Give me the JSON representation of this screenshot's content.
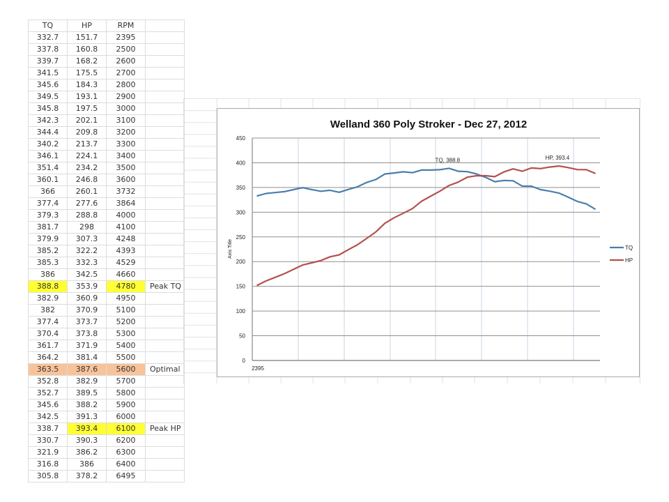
{
  "table": {
    "headers": [
      "TQ",
      "HP",
      "RPM",
      ""
    ],
    "rows": [
      {
        "tq": "332.7",
        "hp": "151.7",
        "rpm": "2395",
        "note": ""
      },
      {
        "tq": "337.8",
        "hp": "160.8",
        "rpm": "2500",
        "note": ""
      },
      {
        "tq": "339.7",
        "hp": "168.2",
        "rpm": "2600",
        "note": ""
      },
      {
        "tq": "341.5",
        "hp": "175.5",
        "rpm": "2700",
        "note": ""
      },
      {
        "tq": "345.6",
        "hp": "184.3",
        "rpm": "2800",
        "note": ""
      },
      {
        "tq": "349.5",
        "hp": "193.1",
        "rpm": "2900",
        "note": ""
      },
      {
        "tq": "345.8",
        "hp": "197.5",
        "rpm": "3000",
        "note": ""
      },
      {
        "tq": "342.3",
        "hp": "202.1",
        "rpm": "3100",
        "note": ""
      },
      {
        "tq": "344.4",
        "hp": "209.8",
        "rpm": "3200",
        "note": ""
      },
      {
        "tq": "340.2",
        "hp": "213.7",
        "rpm": "3300",
        "note": ""
      },
      {
        "tq": "346.1",
        "hp": "224.1",
        "rpm": "3400",
        "note": ""
      },
      {
        "tq": "351.4",
        "hp": "234.2",
        "rpm": "3500",
        "note": ""
      },
      {
        "tq": "360.1",
        "hp": "246.8",
        "rpm": "3600",
        "note": ""
      },
      {
        "tq": "366",
        "hp": "260.1",
        "rpm": "3732",
        "note": ""
      },
      {
        "tq": "377.4",
        "hp": "277.6",
        "rpm": "3864",
        "note": ""
      },
      {
        "tq": "379.3",
        "hp": "288.8",
        "rpm": "4000",
        "note": ""
      },
      {
        "tq": "381.7",
        "hp": "298",
        "rpm": "4100",
        "note": ""
      },
      {
        "tq": "379.9",
        "hp": "307.3",
        "rpm": "4248",
        "note": ""
      },
      {
        "tq": "385.2",
        "hp": "322.2",
        "rpm": "4393",
        "note": ""
      },
      {
        "tq": "385.3",
        "hp": "332.3",
        "rpm": "4529",
        "note": ""
      },
      {
        "tq": "386",
        "hp": "342.5",
        "rpm": "4660",
        "note": ""
      },
      {
        "tq": "388.8",
        "hp": "353.9",
        "rpm": "4780",
        "note": "Peak TQ",
        "highlight": "peak-tq"
      },
      {
        "tq": "382.9",
        "hp": "360.9",
        "rpm": "4950",
        "note": ""
      },
      {
        "tq": "382",
        "hp": "370.9",
        "rpm": "5100",
        "note": ""
      },
      {
        "tq": "377.4",
        "hp": "373.7",
        "rpm": "5200",
        "note": ""
      },
      {
        "tq": "370.4",
        "hp": "373.8",
        "rpm": "5300",
        "note": ""
      },
      {
        "tq": "361.7",
        "hp": "371.9",
        "rpm": "5400",
        "note": ""
      },
      {
        "tq": "364.2",
        "hp": "381.4",
        "rpm": "5500",
        "note": ""
      },
      {
        "tq": "363.5",
        "hp": "387.6",
        "rpm": "5600",
        "note": "Optimal",
        "highlight": "optimal"
      },
      {
        "tq": "352.8",
        "hp": "382.9",
        "rpm": "5700",
        "note": ""
      },
      {
        "tq": "352.7",
        "hp": "389.5",
        "rpm": "5800",
        "note": ""
      },
      {
        "tq": "345.6",
        "hp": "388.2",
        "rpm": "5900",
        "note": ""
      },
      {
        "tq": "342.5",
        "hp": "391.3",
        "rpm": "6000",
        "note": ""
      },
      {
        "tq": "338.7",
        "hp": "393.4",
        "rpm": "6100",
        "note": "Peak HP",
        "highlight": "peak-hp"
      },
      {
        "tq": "330.7",
        "hp": "390.3",
        "rpm": "6200",
        "note": ""
      },
      {
        "tq": "321.9",
        "hp": "386.2",
        "rpm": "6300",
        "note": ""
      },
      {
        "tq": "316.8",
        "hp": "386",
        "rpm": "6400",
        "note": ""
      },
      {
        "tq": "305.8",
        "hp": "378.2",
        "rpm": "6495",
        "note": ""
      }
    ]
  },
  "colors": {
    "tq_line": "#4a7eab",
    "hp_line": "#b4504e",
    "highlight_yellow": "#ffff33",
    "highlight_orange": "#f8c39a",
    "gridline": "#9a9a9a",
    "vertical_gridline": "#c9d6e6"
  },
  "chart_data": {
    "type": "line",
    "title": "Welland 360 Poly Stroker - Dec 27, 2012",
    "xlabel": "",
    "ylabel": "Axis Title",
    "ylim": [
      0,
      450
    ],
    "yticks": [
      0,
      50,
      100,
      150,
      200,
      250,
      300,
      350,
      400,
      450
    ],
    "x_tick_labels_visible": [
      "2395"
    ],
    "grid": true,
    "legend_position": "right",
    "x": [
      2395,
      2500,
      2600,
      2700,
      2800,
      2900,
      3000,
      3100,
      3200,
      3300,
      3400,
      3500,
      3600,
      3732,
      3864,
      4000,
      4100,
      4248,
      4393,
      4529,
      4660,
      4780,
      4950,
      5100,
      5200,
      5300,
      5400,
      5500,
      5600,
      5700,
      5800,
      5900,
      6000,
      6100,
      6200,
      6300,
      6400,
      6495
    ],
    "series": [
      {
        "name": "TQ",
        "values": [
          332.7,
          337.8,
          339.7,
          341.5,
          345.6,
          349.5,
          345.8,
          342.3,
          344.4,
          340.2,
          346.1,
          351.4,
          360.1,
          366,
          377.4,
          379.3,
          381.7,
          379.9,
          385.2,
          385.3,
          386,
          388.8,
          382.9,
          382,
          377.4,
          370.4,
          361.7,
          364.2,
          363.5,
          352.8,
          352.7,
          345.6,
          342.5,
          338.7,
          330.7,
          321.9,
          316.8,
          305.8
        ]
      },
      {
        "name": "HP",
        "values": [
          151.7,
          160.8,
          168.2,
          175.5,
          184.3,
          193.1,
          197.5,
          202.1,
          209.8,
          213.7,
          224.1,
          234.2,
          246.8,
          260.1,
          277.6,
          288.8,
          298,
          307.3,
          322.2,
          332.3,
          342.5,
          353.9,
          360.9,
          370.9,
          373.7,
          373.8,
          371.9,
          381.4,
          387.6,
          382.9,
          389.5,
          388.2,
          391.3,
          393.4,
          390.3,
          386.2,
          386,
          378.2
        ]
      }
    ],
    "annotations": [
      {
        "text": "TQ, 388.8",
        "series": "TQ",
        "index": 21
      },
      {
        "text": "HP, 393.4",
        "series": "HP",
        "index": 33
      }
    ],
    "legend": [
      "TQ",
      "HP"
    ]
  }
}
